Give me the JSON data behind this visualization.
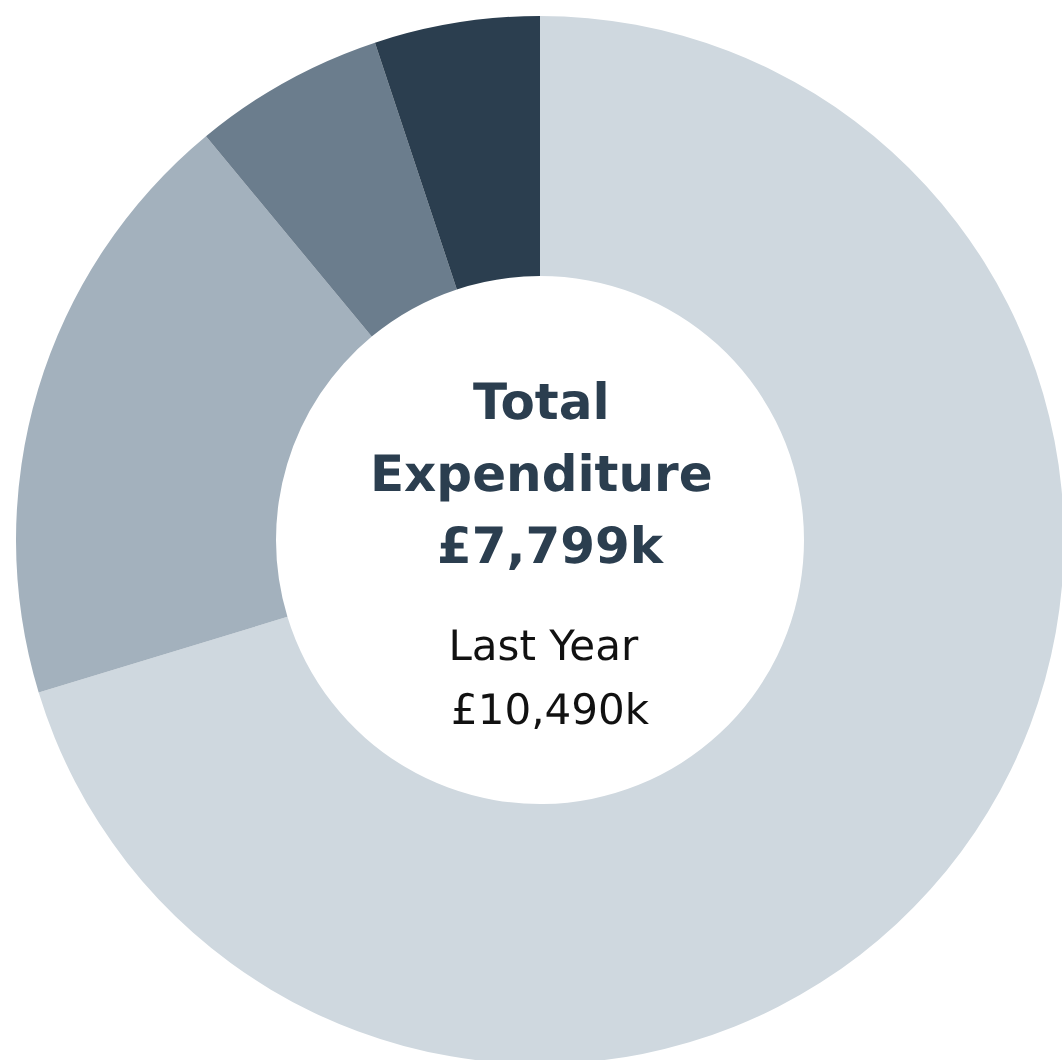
{
  "chart_data": {
    "type": "donut",
    "title": "Total Expenditure £7,799k",
    "subtitle": "Last Year £10,490k",
    "categories": [
      null,
      null,
      null,
      null
    ],
    "values": [
      70.3,
      18.7,
      5.9,
      5.1
    ],
    "colors": [
      "#cfd8df",
      "#a3b1bd",
      "#6b7d8d",
      "#2b3e4f"
    ]
  }
}
